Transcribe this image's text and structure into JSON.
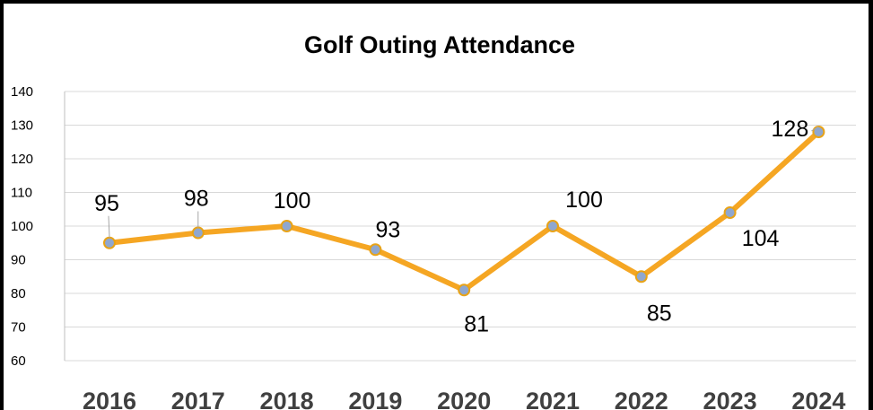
{
  "chart_data": {
    "type": "line",
    "title": "Golf Outing Attendance",
    "xlabel": "",
    "ylabel": "",
    "categories": [
      "2016",
      "2017",
      "2018",
      "2019",
      "2020",
      "2021",
      "2022",
      "2023",
      "2024"
    ],
    "series": [
      {
        "values": [
          95,
          98,
          100,
          93,
          81,
          100,
          85,
          104,
          128
        ],
        "color": "#F5A623"
      }
    ],
    "ylim": [
      60,
      140
    ],
    "yticks": [
      60,
      70,
      80,
      90,
      100,
      110,
      120,
      130,
      140
    ],
    "grid": true,
    "legend": "none",
    "data_labels": [
      "95",
      "98",
      "100",
      "93",
      "81",
      "100",
      "85",
      "104",
      "128"
    ],
    "marker_fill": "#8FA7CF",
    "marker_stroke": "#E8A317"
  }
}
